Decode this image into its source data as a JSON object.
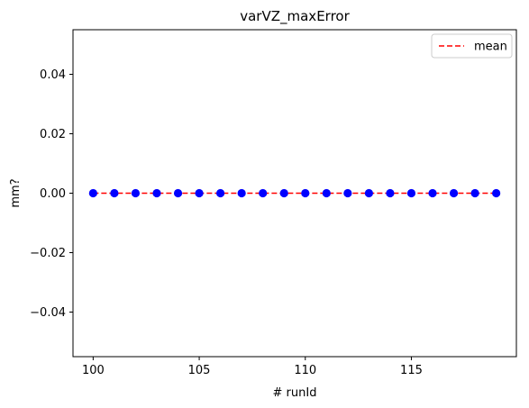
{
  "chart_data": {
    "type": "scatter",
    "title": "varVZ_maxError",
    "xlabel": "# runId",
    "ylabel": "mm?",
    "xlim": [
      99.05,
      119.95
    ],
    "ylim": [
      -0.055,
      0.055
    ],
    "x_ticks": [
      100,
      105,
      110,
      115
    ],
    "y_ticks": [
      -0.04,
      -0.02,
      0.0,
      0.02,
      0.04
    ],
    "y_tick_labels": [
      "−0.04",
      "−0.02",
      "0.00",
      "0.02",
      "0.04"
    ],
    "grid": false,
    "legend": {
      "placement": "top-right",
      "entries": [
        {
          "label": "mean",
          "style": "dashed-line",
          "color": "#ff0000"
        }
      ]
    },
    "points": {
      "x": [
        100,
        101,
        102,
        103,
        104,
        105,
        106,
        107,
        108,
        109,
        110,
        111,
        112,
        113,
        114,
        115,
        116,
        117,
        118,
        119
      ],
      "y": [
        0,
        0,
        0,
        0,
        0,
        0,
        0,
        0,
        0,
        0,
        0,
        0,
        0,
        0,
        0,
        0,
        0,
        0,
        0,
        0
      ],
      "color": "#0000ff"
    },
    "mean_line": {
      "label": "mean",
      "value": 0,
      "x_range": [
        100,
        119
      ],
      "color": "#ff0000",
      "style": "dashed"
    }
  }
}
